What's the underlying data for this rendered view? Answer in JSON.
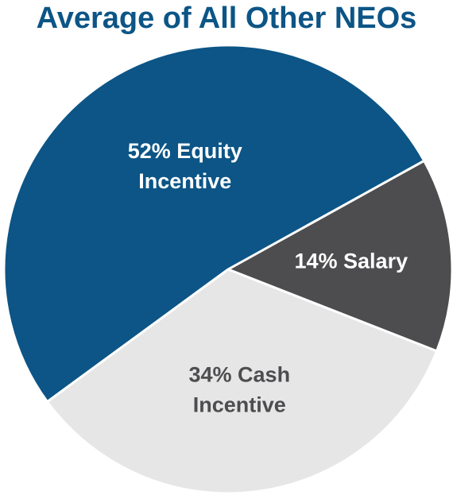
{
  "title": "Average of All Other NEOs",
  "chart_data": {
    "type": "pie",
    "title": "Average of All Other NEOs",
    "slices": [
      {
        "category": "Salary",
        "value": 14,
        "label_lines": [
          "14% Salary"
        ],
        "color": "#4d4d4f",
        "label_color": "#ffffff"
      },
      {
        "category": "Cash Incentive",
        "value": 34,
        "label_lines": [
          "34% Cash",
          "Incentive"
        ],
        "color": "#e6e6e7",
        "label_color": "#4d4d4f"
      },
      {
        "category": "Equity Incentive",
        "value": 52,
        "label_lines": [
          "52% Equity",
          "Incentive"
        ],
        "color": "#0c5586",
        "label_color": "#ffffff"
      }
    ],
    "start_angle_deg": -29,
    "direction": "clockwise"
  }
}
